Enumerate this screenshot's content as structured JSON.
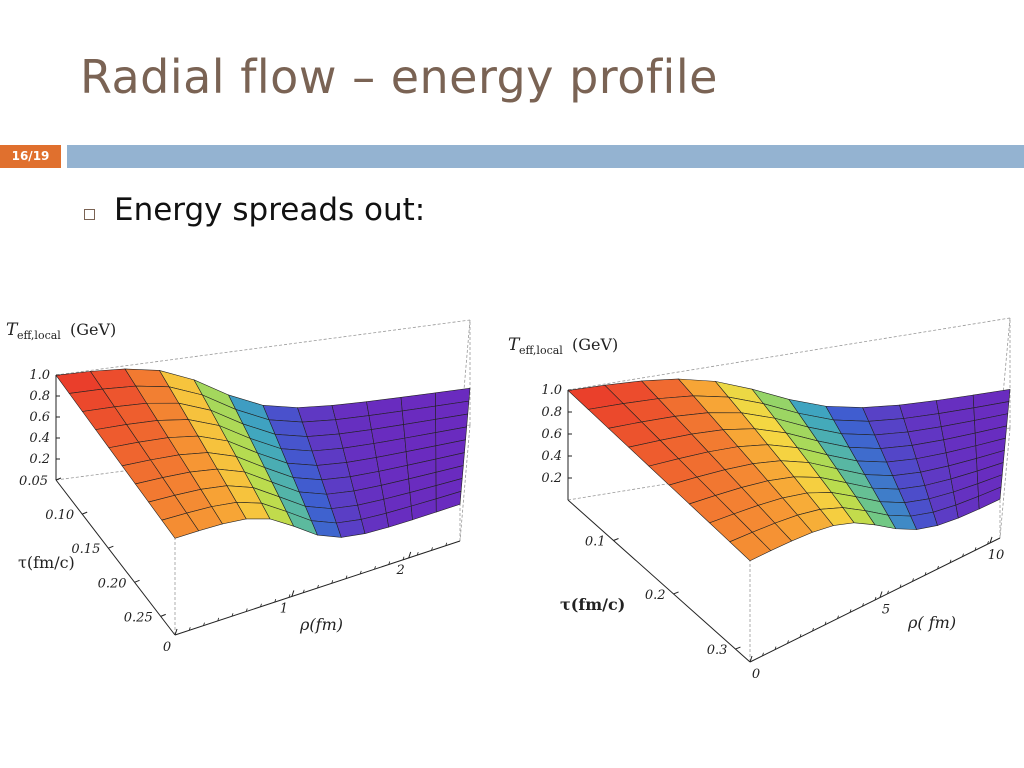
{
  "slide": {
    "title": "Radial flow – energy profile",
    "number": "16/19",
    "bullet": "Energy spreads out:"
  },
  "colors": {
    "title": "#7a6354",
    "accent_orange": "#e0702e",
    "accent_blue": "#94b3d1"
  },
  "chart_data": [
    {
      "type": "surface3d",
      "zlabel_main": "T",
      "zlabel_sub": "eff,local",
      "zlabel_unit": "(GeV)",
      "xlabel": "ρ(fm)",
      "ylabel": "τ(fm/c)",
      "z_ticks": [
        "1.0",
        "0.8",
        "0.6",
        "0.4",
        "0.2"
      ],
      "tau_ticks": [
        "0.05",
        "0.10",
        "0.15",
        "0.20",
        "0.25"
      ],
      "rho_ticks": [
        "0",
        "1",
        "2"
      ],
      "zlim": [
        0,
        1.0
      ],
      "colormap": [
        "#e8322a",
        "#f7a035",
        "#f5d742",
        "#b9dc4e",
        "#7ccf7a",
        "#3fa6c0",
        "#3f5ed0",
        "#6a2bbf"
      ]
    },
    {
      "type": "surface3d",
      "zlabel_main": "T",
      "zlabel_sub": "eff,local",
      "zlabel_unit": "(GeV)",
      "xlabel": "ρ( fm)",
      "ylabel": "τ(fm/c)",
      "z_ticks": [
        "1.0",
        "0.8",
        "0.6",
        "0.4",
        "0.2"
      ],
      "tau_ticks": [
        "0.1",
        "0.2",
        "0.3"
      ],
      "rho_ticks": [
        "0",
        "5",
        "10"
      ],
      "zlim": [
        0,
        1.0
      ],
      "colormap": [
        "#e8322a",
        "#f7a035",
        "#f5d742",
        "#b9dc4e",
        "#7ccf7a",
        "#3fa6c0",
        "#3f5ed0",
        "#6a2bbf"
      ]
    }
  ]
}
